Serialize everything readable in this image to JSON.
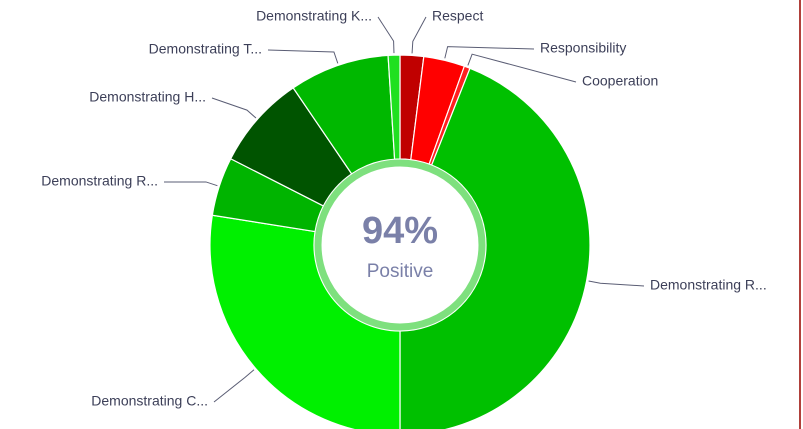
{
  "chart_data": {
    "type": "donut",
    "categories": [
      "Respect",
      "Responsibility",
      "Cooperation",
      "Demonstrating R...",
      "Demonstrating C...",
      "Demonstrating R...",
      "Demonstrating H...",
      "Demonstrating T...",
      "Demonstrating K..."
    ],
    "values": [
      2,
      3.5,
      0.5,
      44,
      27.5,
      5,
      8,
      8.5,
      1
    ],
    "colors": [
      "#c00000",
      "#ff0000",
      "#ff2020",
      "#00c000",
      "#00f000",
      "#00b400",
      "#005400",
      "#00b800",
      "#20e020"
    ],
    "center_value": {
      "value": 94,
      "label": "94%"
    },
    "center_caption": "Positive"
  }
}
